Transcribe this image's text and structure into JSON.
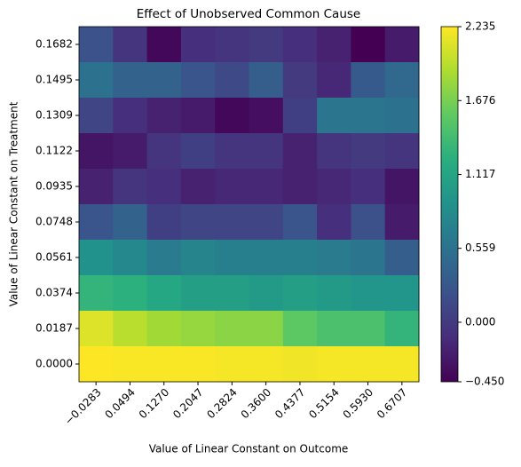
{
  "chart_data": {
    "type": "heatmap",
    "title": "Effect of Unobserved Common Cause",
    "x_label": "Value of Linear Constant on Outcome",
    "y_label": "Value of Linear Constant on Treatment",
    "categories": [
      "−0.0283",
      "0.0494",
      "0.1270",
      "0.2047",
      "0.2824",
      "0.3600",
      "0.4377",
      "0.5154",
      "0.5930",
      "0.6707"
    ],
    "y_categories": [
      "0.1682",
      "0.1495",
      "0.1309",
      "0.1122",
      "0.0935",
      "0.0748",
      "0.0561",
      "0.0374",
      "0.0187",
      "0.0000"
    ],
    "z": [
      [
        0.22,
        -0.05,
        -0.4,
        -0.1,
        -0.05,
        0.0,
        -0.1,
        -0.2,
        -0.45,
        -0.25
      ],
      [
        0.55,
        0.4,
        0.4,
        0.25,
        0.15,
        0.35,
        0.0,
        -0.15,
        0.3,
        0.45
      ],
      [
        0.1,
        -0.1,
        -0.2,
        -0.25,
        -0.4,
        -0.35,
        0.05,
        0.6,
        0.6,
        0.55
      ],
      [
        -0.3,
        -0.25,
        -0.05,
        0.05,
        -0.05,
        -0.05,
        -0.2,
        -0.05,
        0.0,
        -0.05
      ],
      [
        -0.2,
        -0.05,
        -0.1,
        -0.2,
        -0.15,
        -0.15,
        -0.2,
        -0.15,
        -0.1,
        -0.3
      ],
      [
        0.25,
        0.4,
        0.05,
        0.1,
        0.1,
        0.1,
        0.25,
        -0.1,
        0.2,
        -0.25
      ],
      [
        0.9,
        0.8,
        0.65,
        0.75,
        0.7,
        0.7,
        0.7,
        0.65,
        0.6,
        0.35
      ],
      [
        1.3,
        1.25,
        1.15,
        1.05,
        1.05,
        1.0,
        1.05,
        1.0,
        0.95,
        0.95
      ],
      [
        2.1,
        1.95,
        1.85,
        1.8,
        1.75,
        1.75,
        1.55,
        1.45,
        1.45,
        1.3
      ],
      [
        2.235,
        2.22,
        2.22,
        2.22,
        2.2,
        2.2,
        2.18,
        2.2,
        2.2,
        2.2
      ]
    ],
    "colormap": "viridis",
    "zlim": [
      -0.45,
      2.235
    ],
    "zticks": [
      {
        "value": -0.45,
        "label": "−0.450"
      },
      {
        "value": 0,
        "label": "0.000"
      },
      0.559,
      1.117,
      1.676,
      2.235
    ]
  }
}
